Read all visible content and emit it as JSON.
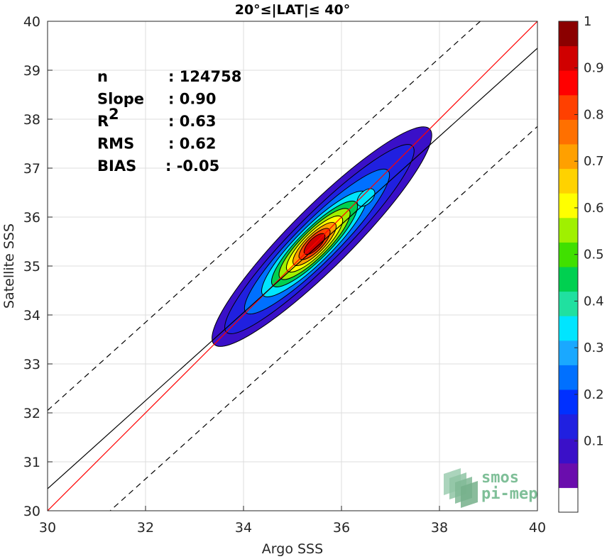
{
  "chart_data": {
    "type": "contour",
    "title": "20°≤|LAT|≤ 40°",
    "xlabel": "Argo SSS",
    "ylabel": "Satellite SSS",
    "xlim": [
      30,
      40
    ],
    "ylim": [
      30,
      40
    ],
    "xticks": [
      "30",
      "32",
      "34",
      "36",
      "38",
      "40"
    ],
    "yticks": [
      "30",
      "31",
      "32",
      "33",
      "34",
      "35",
      "36",
      "37",
      "38",
      "39",
      "40"
    ],
    "grid": true,
    "stats": [
      {
        "label": "n",
        "value": ": 124758"
      },
      {
        "label": "Slope",
        "value": ": 0.90"
      },
      {
        "label": "R",
        "sup": "2",
        "value": ": 0.63"
      },
      {
        "label": "RMS",
        "value": ": 0.62"
      },
      {
        "label": "BIAS",
        "value": ": -0.05"
      }
    ],
    "lines": {
      "identity": {
        "slope": 1.0,
        "intercept": 0.0,
        "color": "#ff0000"
      },
      "fit": {
        "slope": 0.9,
        "intercept": 3.45,
        "color": "#000000"
      },
      "bounds_offset": 1.6
    },
    "density_contours": [
      {
        "level": 0.05,
        "cx": 35.6,
        "cy": 35.6,
        "rx": 2.2,
        "ry": 0.62
      },
      {
        "level": 0.1,
        "cx": 35.55,
        "cy": 35.55,
        "rx": 1.9,
        "ry": 0.5
      },
      {
        "level": 0.2,
        "cx": 35.5,
        "cy": 35.5,
        "rx": 1.45,
        "ry": 0.42
      },
      {
        "level": 0.3,
        "cx": 35.45,
        "cy": 35.45,
        "rx": 1.05,
        "ry": 0.36
      },
      {
        "level": 0.4,
        "cx": 35.45,
        "cy": 35.45,
        "rx": 0.85,
        "ry": 0.31
      },
      {
        "level": 0.5,
        "cx": 35.45,
        "cy": 35.45,
        "rx": 0.7,
        "ry": 0.27
      },
      {
        "level": 0.6,
        "cx": 35.45,
        "cy": 35.45,
        "rx": 0.55,
        "ry": 0.23
      },
      {
        "level": 0.7,
        "cx": 35.45,
        "cy": 35.45,
        "rx": 0.42,
        "ry": 0.19
      },
      {
        "level": 0.8,
        "cx": 35.45,
        "cy": 35.45,
        "rx": 0.3,
        "ry": 0.15
      },
      {
        "level": 0.9,
        "cx": 35.45,
        "cy": 35.45,
        "rx": 0.2,
        "ry": 0.11
      }
    ],
    "secondary_peak": {
      "level": 0.3,
      "cx": 36.5,
      "cy": 36.4,
      "rx": 0.22,
      "ry": 0.13
    },
    "colorbar": {
      "ticks": [
        "0.1",
        "0.2",
        "0.3",
        "0.4",
        "0.5",
        "0.6",
        "0.7",
        "0.8",
        "0.9",
        "1"
      ],
      "colors": [
        "#ffffff",
        "#6a0dad",
        "#3a10c8",
        "#2020e0",
        "#0030ff",
        "#0070ff",
        "#1aa8ff",
        "#00e5ff",
        "#20e0a0",
        "#00d050",
        "#40e000",
        "#a0f000",
        "#ffff00",
        "#ffd200",
        "#ffa000",
        "#ff7000",
        "#ff4000",
        "#ff0000",
        "#d00000",
        "#8b0000"
      ]
    }
  },
  "logo": {
    "line1": "smos",
    "line2": "pi-mep"
  }
}
